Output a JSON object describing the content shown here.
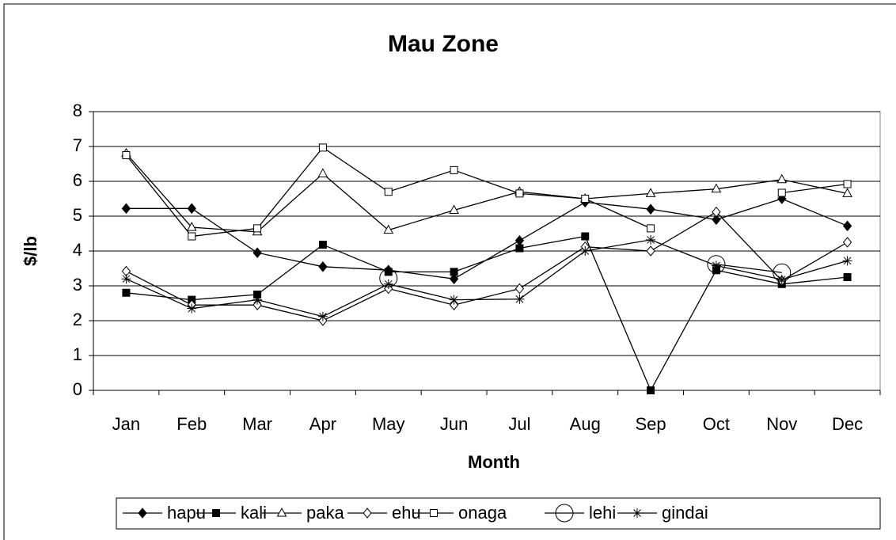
{
  "chart_data": {
    "type": "line",
    "title": "Mau Zone",
    "x_label": "Month",
    "y_label": "$/lb",
    "categories": [
      "Jan",
      "Feb",
      "Mar",
      "Apr",
      "May",
      "Jun",
      "Jul",
      "Aug",
      "Sep",
      "Oct",
      "Nov",
      "Dec"
    ],
    "ylim": [
      0,
      8
    ],
    "yticks": [
      0,
      1,
      2,
      3,
      4,
      5,
      6,
      7,
      8
    ],
    "grid": true,
    "legend": "bottom",
    "series": [
      {
        "name": "hapu",
        "color": "#000000",
        "values": [
          5.22,
          5.22,
          3.95,
          3.55,
          3.45,
          3.2,
          4.3,
          5.4,
          5.2,
          4.9,
          5.5,
          4.72
        ]
      },
      {
        "name": "kali",
        "color": "#000000",
        "values": [
          2.8,
          2.6,
          2.75,
          4.18,
          3.4,
          3.4,
          4.08,
          4.42,
          0,
          3.45,
          3.05,
          3.25
        ]
      },
      {
        "name": "paka",
        "color": "#000000",
        "values": [
          6.8,
          4.68,
          4.55,
          6.22,
          4.6,
          5.17,
          5.7,
          5.5,
          5.65,
          5.78,
          6.05,
          5.65
        ]
      },
      {
        "name": "ehu",
        "color": "#000000",
        "values": [
          3.42,
          2.45,
          2.45,
          2.0,
          2.92,
          2.45,
          2.92,
          4.12,
          4.0,
          5.12,
          3.15,
          4.25
        ]
      },
      {
        "name": "onaga",
        "color": "#000000",
        "values": [
          6.75,
          4.42,
          4.65,
          6.97,
          5.7,
          6.32,
          5.65,
          5.5,
          4.65,
          null,
          5.67,
          5.92
        ]
      },
      {
        "name": "lehi",
        "color": "#000000",
        "values": [
          null,
          null,
          null,
          null,
          3.22,
          null,
          null,
          null,
          null,
          3.62,
          3.38,
          null
        ]
      },
      {
        "name": "gindai",
        "color": "#000000",
        "values": [
          3.2,
          2.35,
          2.6,
          2.12,
          3.05,
          2.6,
          2.62,
          4.0,
          4.32,
          3.58,
          3.18,
          3.72
        ]
      }
    ]
  }
}
